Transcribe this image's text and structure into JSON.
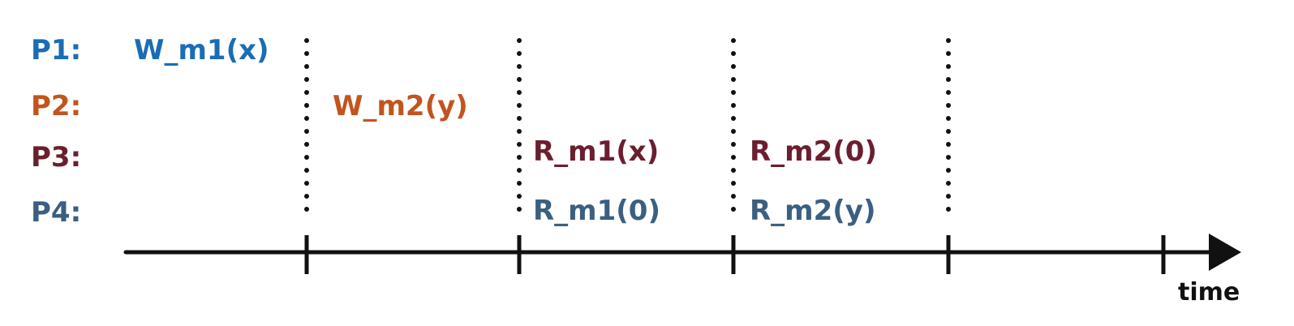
{
  "processes": [
    {
      "id": "p1",
      "label": "P1:",
      "color": "#1a6db5"
    },
    {
      "id": "p2",
      "label": "P2:",
      "color": "#c2541e"
    },
    {
      "id": "p3",
      "label": "P3:",
      "color": "#6b1f2e"
    },
    {
      "id": "p4",
      "label": "P4:",
      "color": "#3b5f80"
    }
  ],
  "operations": {
    "p1_w_m1": "W_m1(x)",
    "p2_w_m2": "W_m2(y)",
    "p3_r_m1": "R_m1(x)",
    "p3_r_m2": "R_m2(0)",
    "p4_r_m1": "R_m1(0)",
    "p4_r_m2": "R_m2(y)"
  },
  "axis": {
    "label": "time"
  }
}
